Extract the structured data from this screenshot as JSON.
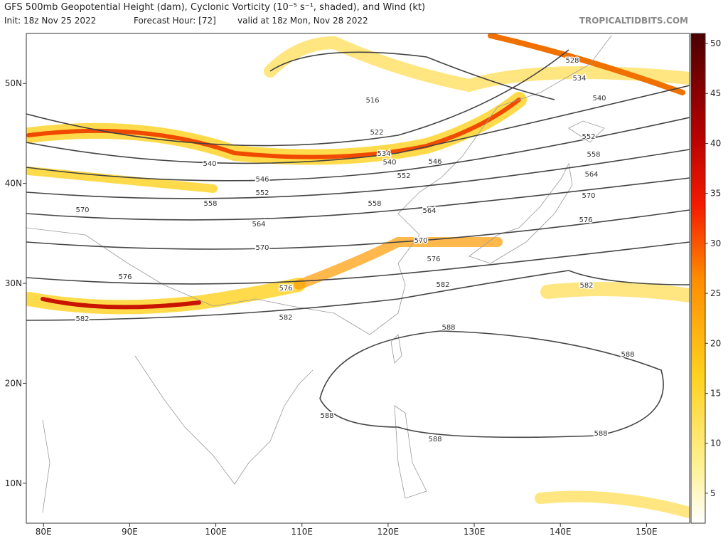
{
  "header": {
    "title": "GFS 500mb Geopotential Height (dam), Cyclonic Vorticity (10⁻⁵ s⁻¹, shaded), and Wind (kt)",
    "init": "Init: 18z Nov 25 2022",
    "forecast_hour": "Forecast Hour: [72]",
    "valid": "valid at 18z Mon, Nov 28 2022",
    "site": "TROPICALTIDBITS.COM"
  },
  "map": {
    "lonlim": [
      78,
      155
    ],
    "latlim": [
      6,
      55
    ],
    "lon_ticks": [
      {
        "value": 80,
        "label": "80E"
      },
      {
        "value": 90,
        "label": "90E"
      },
      {
        "value": 100,
        "label": "100E"
      },
      {
        "value": 110,
        "label": "110E"
      },
      {
        "value": 120,
        "label": "120E"
      },
      {
        "value": 130,
        "label": "130E"
      },
      {
        "value": 140,
        "label": "140E"
      },
      {
        "value": 150,
        "label": "150E"
      }
    ],
    "lat_ticks": [
      {
        "value": 50,
        "label": "50N"
      },
      {
        "value": 40,
        "label": "40N"
      },
      {
        "value": 30,
        "label": "30N"
      },
      {
        "value": 20,
        "label": "20N"
      },
      {
        "value": 10,
        "label": "10N"
      }
    ],
    "height_contour_labels": [
      528,
      534,
      540,
      552,
      558,
      564,
      570,
      576,
      582,
      588,
      588,
      588,
      588,
      588,
      516,
      522,
      534,
      540,
      540,
      546,
      546,
      552,
      552,
      558,
      558,
      564,
      564,
      570,
      570,
      570,
      576,
      576,
      576,
      582,
      582,
      582
    ]
  },
  "colorbar": {
    "range": [
      2,
      51
    ],
    "ticks": [
      5,
      10,
      15,
      20,
      25,
      30,
      35,
      40,
      45,
      50
    ]
  }
}
